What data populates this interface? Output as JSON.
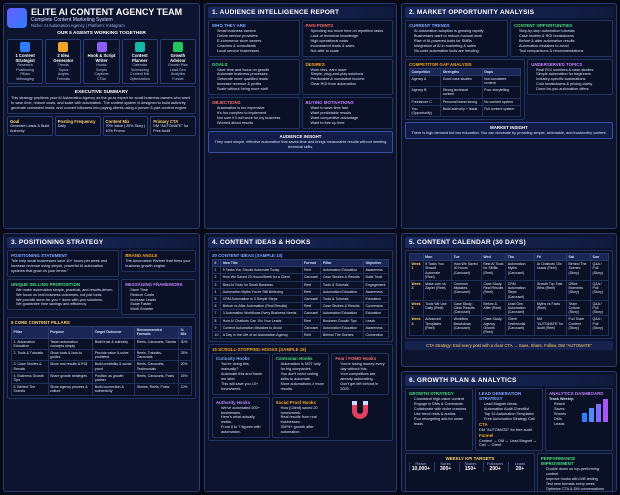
{
  "header": {
    "title": "ELITE AI CONTENT AGENCY TEAM",
    "subtitle": "Complete Content Marketing System",
    "niche": "Niche: AI Automation Agency | Platform: Instagram"
  },
  "agents": {
    "title": "OUR 5 AGENTS WORKING TOGETHER",
    "items": [
      {
        "name": "1 Content Strategist",
        "tasks": [
          "Research",
          "Positioning",
          "Pillars",
          "Messaging"
        ]
      },
      {
        "name": "2 Idea Generator",
        "tasks": [
          "Trends",
          "Topics",
          "Angles",
          "Formats"
        ]
      },
      {
        "name": "Hook & Script Writer",
        "tasks": [
          "Hooks",
          "Scripts",
          "Captions",
          "CTAs"
        ]
      },
      {
        "name": "Content Planner",
        "tasks": [
          "Calendar",
          "Scheduling",
          "Content Mix",
          "Optimization"
        ]
      },
      {
        "name": "Growth Advisor",
        "tasks": [
          "Growth Plan",
          "Lead Gen",
          "Analytics",
          "Funnel"
        ]
      }
    ]
  },
  "summary": {
    "title": "EXECUTIVE SUMMARY",
    "text": "This strategy positions your AI Automation Agency as the go-to expert for small business owners who want to save time, reduce costs, and scale with automation. The content system is designed to build authority, generate consistent leads, and convert followers into paying clients using a proven 5-part content engine.",
    "stats": [
      {
        "label": "Goal",
        "value": "Generate Leads & Build Authority"
      },
      {
        "label": "Posting Frequency",
        "value": "Daily"
      },
      {
        "label": "Content Mix",
        "value": "70% Value | 20% Story | 10% Promo"
      },
      {
        "label": "Primary CTA",
        "value": "DM \"AUTOMATE\" for Free Audit"
      }
    ]
  },
  "audience": {
    "title": "1. AUDIENCE INTELLIGENCE REPORT",
    "blocks": [
      {
        "heading": "WHO THEY ARE",
        "items": [
          "Small business owners",
          "Online service providers",
          "E-commerce store owners",
          "Coaches & consultants",
          "Local service businesses"
        ]
      },
      {
        "heading": "PAIN POINTS",
        "items": [
          "Spending too much time on repetitive tasks",
          "Lack of technical knowledge",
          "High operational costs",
          "Inconsistent leads & sales",
          "Not able to scale"
        ]
      },
      {
        "heading": "GOALS",
        "items": [
          "Save time and focus on growth",
          "Automate business processes",
          "Generate more qualified leads",
          "Increase revenue & profits",
          "Scale without hiring more staff"
        ]
      },
      {
        "heading": "DESIRES",
        "items": [
          "Work less, earn more",
          "Simple, plug-and-play solutions",
          "Predictable & consistent income",
          "Clear ROI from automation"
        ]
      },
      {
        "heading": "OBJECTIONS",
        "items": [
          "Automation is too expensive",
          "It's too complex to implement",
          "Not sure if it will work for my business",
          "Worried about results"
        ]
      },
      {
        "heading": "BUYING MOTIVATIONS",
        "items": [
          "Want to save time fast",
          "Want predictable results",
          "Want competitive advantage",
          "Want to free up time"
        ]
      }
    ],
    "insight": {
      "heading": "AUDIENCE INSIGHT",
      "text": "They want simple, effective automation that saves time and brings measurable results without needing technical skills."
    }
  },
  "market": {
    "title": "2. MARKET OPPORTUNITY ANALYSIS",
    "trends": {
      "heading": "CURRENT TRENDS",
      "items": [
        "AI automation adoption is growing rapidly",
        "Businesses want to reduce manual work",
        "Rise of AI-powered tools for SMBs",
        "Integration of AI in marketing & sales",
        "No-code automation tools are trending"
      ]
    },
    "opportunities": {
      "heading": "CONTENT OPPORTUNITIES",
      "items": [
        "Step-by-step automation tutorials",
        "Case studies & ROI breakdowns",
        "Before & after automation results",
        "Automation mistakes to avoid",
        "Tool comparisons & recommendations"
      ]
    },
    "competitors": {
      "heading": "COMPETITOR GAP ANALYSIS",
      "columns": [
        "Competitor",
        "Strengths",
        "Gaps"
      ],
      "rows": [
        [
          "Agency A",
          "Good case studies",
          "Not consistent content"
        ],
        [
          "Agency B",
          "Strong technical content",
          "Poor storytelling"
        ],
        [
          "Freelancer C",
          "Personal brand strong",
          "No content system"
        ],
        [
          "You (Opportunity)",
          "Build authority + leads",
          "Full content system"
        ]
      ]
    },
    "underserved": {
      "heading": "UNDERSERVED TOPICS",
      "items": [
        "Real ROI numbers & case studies",
        "Simple automation for beginners",
        "Industry-specific automations",
        "Cost breakdowns & pricing clarity",
        "Done-for-you automation offers"
      ]
    },
    "insight": {
      "heading": "MARKET INSIGHT",
      "text": "There is high demand but low education. You can dominate by providing simple, actionable, and trustworthy content."
    }
  },
  "positioning": {
    "title": "3. POSITIONING STRATEGY",
    "statement": {
      "heading": "POSITIONING STATEMENT",
      "text": "\"We help small businesses save 10+ hours per week and increase revenue using simple, powerful AI automation systems that grow on your terms.\""
    },
    "angle": {
      "heading": "BRAND ANGLE",
      "text": "The Automation Partner that frees your business growth engine."
    },
    "usp": {
      "heading": "UNIQUE SELLING PROPOSITION",
      "items": [
        "We make automation simple, practical, and results-driven.",
        "We focus on real business outcomes, not just tools.",
        "We provide done-for-you + done-with-you solutions.",
        "We guarantee time savings and efficiency."
      ]
    },
    "framework": {
      "heading": "MESSAGING FRAMEWORK",
      "items": [
        "Save Time",
        "Reduce Costs",
        "Increase Leads",
        "Scale Faster",
        "Work Smarter"
      ]
    },
    "pillars": {
      "heading": "5 CORE CONTENT PILLARS",
      "columns": [
        "Pillar",
        "Purpose",
        "Target Outcome",
        "Recommended Formats",
        "% Mix"
      ],
      "rows": [
        [
          "1. Automation Education",
          "Teach automation concepts simply",
          "Build trust & authority",
          "Reels, Carousels, Stories",
          "30%"
        ],
        [
          "2. Tools & Tutorials",
          "Show tools & how-to guides",
          "Provide value & solve problems",
          "Reels, Tutorials, Carousels",
          "25%"
        ],
        [
          "3. Case Studies & Results",
          "Show real results & ROI",
          "Build credibility & social proof",
          "Reels, Carousels, Testimonials",
          "20%"
        ],
        [
          "4. Business Growth Tips",
          "Share growth strategies",
          "Position as growth partner",
          "Reels, Carousels, Posts",
          "15%"
        ],
        [
          "5. Behind The Scenes",
          "Show agency process & culture",
          "Build connection & authenticity",
          "Stories, Reels, Posts",
          "10%"
        ]
      ]
    }
  },
  "ideas": {
    "title": "4. CONTENT IDEAS & HOOKS",
    "table": {
      "heading": "30 CONTENT IDEAS (SAMPLE 10)",
      "columns": [
        "#",
        "Idea Title",
        "Format",
        "Pillar",
        "Objective"
      ],
      "rows": [
        [
          "1",
          "5 Tasks You Should Automate Today",
          "Reel",
          "Automation Education",
          "Awareness"
        ],
        [
          "2",
          "How We Saved 20 Hours/Week for a Client",
          "Carousel",
          "Case Studies & Results",
          "Build Trust"
        ],
        [
          "3",
          "Best AI Tools for Small Business",
          "Reel",
          "Tools & Tutorials",
          "Engagement"
        ],
        [
          "4",
          "Automation Myths You're Still Believing",
          "Reel",
          "Automation Education",
          "Awareness"
        ],
        [
          "5",
          "CRM Automation in 3 Simple Steps",
          "Carousel",
          "Tools & Tutorials",
          "Education"
        ],
        [
          "6",
          "Before vs After Automation (Real Results)",
          "Reel",
          "Case Studies & Results",
          "Conversion"
        ],
        [
          "7",
          "3 Automation Workflows Every Business Needs",
          "Carousel",
          "Automation Education",
          "Education"
        ],
        [
          "8",
          "How AI Chatbots Can 10x Your Leads",
          "Reel",
          "Business Growth Tips",
          "Leads"
        ],
        [
          "9",
          "Content Automation Mistakes to Avoid",
          "Carousel",
          "Automation Education",
          "Awareness"
        ],
        [
          "10",
          "A Day in the Life of an Automation Agency",
          "Reel",
          "Behind The Scenes",
          "Connection"
        ]
      ]
    },
    "hooks": {
      "heading": "15 SCROLL-STOPPING HOOKS (SAMPLE 15)",
      "groups": [
        {
          "heading": "Curiosity Hooks",
          "items": [
            "You're doing this manually?",
            "Automate this and thank me later.",
            "This will save you 10+ hours/week."
          ]
        },
        {
          "heading": "Contrarian Hooks",
          "items": [
            "Automation is NOT only for big companies.",
            "You don't need coding skills to automate.",
            "More automations ≠ more results."
          ]
        },
        {
          "heading": "Fear / FOMO Hooks",
          "items": [
            "You're losing money every day without this.",
            "Your competitors are already automating.",
            "Don't get left behind in 2025."
          ]
        },
        {
          "heading": "Authority Hooks",
          "items": [
            "We've automated 200+ businesses.",
            "Here's what actually works.",
            "From 0 to 7 figures with automation."
          ]
        },
        {
          "heading": "Social Proof Hooks",
          "items": [
            "How [Client] saved 20 hours/week.",
            "Real results from real businesses.",
            "300%+ growth after automation."
          ]
        }
      ]
    }
  },
  "calendar": {
    "title": "5. CONTENT CALENDAR (30 DAYS)",
    "columns": [
      "Mon",
      "Tue",
      "Wed",
      "Thu",
      "Fri",
      "Sat",
      "Sun"
    ],
    "rows": [
      {
        "week": "Week 1",
        "cells": [
          "5 Tasks You Should Automate (Reel)",
          "How We Saved 20 Hours (Carousel)",
          "Best AI Tools for SMBs (Reel)",
          "Automation Myths (Carousel)",
          "AI Chatbots 10x Leads (Reel)",
          "Behind The Scenes (Story)",
          "Q&A / Poll (Story)"
        ]
      },
      {
        "week": "Week 2",
        "cells": [
          "Make.com vs Zapier (Reel)",
          "Common Mistakes (Carousel)",
          "Case Study: Real Results (Reel)",
          "CRM Automation Steps (Carousel)",
          "Growth Tip: Fast Wins (Reel)",
          "Office Moments (Story)",
          "Q&A / Poll (Story)"
        ]
      },
      {
        "week": "Week 3",
        "cells": [
          "Tools We Use Daily (Reel)",
          "Case Study: Clinic Results (Carousel)",
          "Before & After (Reel)",
          "Lead Gen Automation (Carousel)",
          "Myths vs Facts (Reel)",
          "Team Culture (Story)",
          "Q&A / Poll (Story)"
        ]
      },
      {
        "week": "Week 4",
        "cells": [
          "Advanced Templates (Reel)",
          "Workflow Breakdown (Carousel)",
          "Case Study: Agency Growth (Reel)",
          "Client Testimonial (Carousel)",
          "DM \"AUTOMATE\" for Audit (Reel)",
          "Fun Team Content (Story)",
          "Q&A / Poll (Story)"
        ]
      }
    ],
    "cta": "CTA Strategy: End every post with a clear CTA → Save, Share, Follow, DM \"AUTOMATE\""
  },
  "growth": {
    "title": "6. GROWTH PLAN & ANALYTICS",
    "strategy": {
      "heading": "GROWTH STRATEGY",
      "items": [
        "Consistent high-value content",
        "Engage in DMs & Comments",
        "Collaborate with niche creators",
        "Use trend reels & audios",
        "Run retargeting ads for warm leads"
      ]
    },
    "leads": {
      "heading": "LEAD GENERATION STRATEGY",
      "items": [
        "Lead Magnet Ideas:",
        "Automation Audit Checklist",
        "Top 10 Automation Templates",
        "Free Automation Strategy Call"
      ],
      "cta_heading": "CTA",
      "cta": "DM \"AUTOMATE\" for free audit",
      "funnel_heading": "Funnel",
      "funnel": "Content → DM → Lead Magnet → Call → Client"
    },
    "analytics": {
      "heading": "ANALYTICS DASHBOARD",
      "subheading": "Track Weekly:",
      "items": [
        "Reach",
        "Saves",
        "Shares",
        "DMs",
        "Leads"
      ]
    },
    "improvement": {
      "heading": "PERFORMANCE IMPROVEMENT",
      "items": [
        "Double down on top-performing content",
        "Improve hooks with A/B testing",
        "Test new formats every week",
        "Optimize CTA & DM conversations"
      ]
    },
    "kpis": {
      "heading": "WEEKLY KPI TARGETS",
      "items": [
        {
          "label": "Reach",
          "value": "10,000+"
        },
        {
          "label": "Saves",
          "value": "300+"
        },
        {
          "label": "Shares",
          "value": "150+"
        },
        {
          "label": "Followers",
          "value": "200+"
        },
        {
          "label": "Leads",
          "value": "20+"
        }
      ]
    }
  }
}
